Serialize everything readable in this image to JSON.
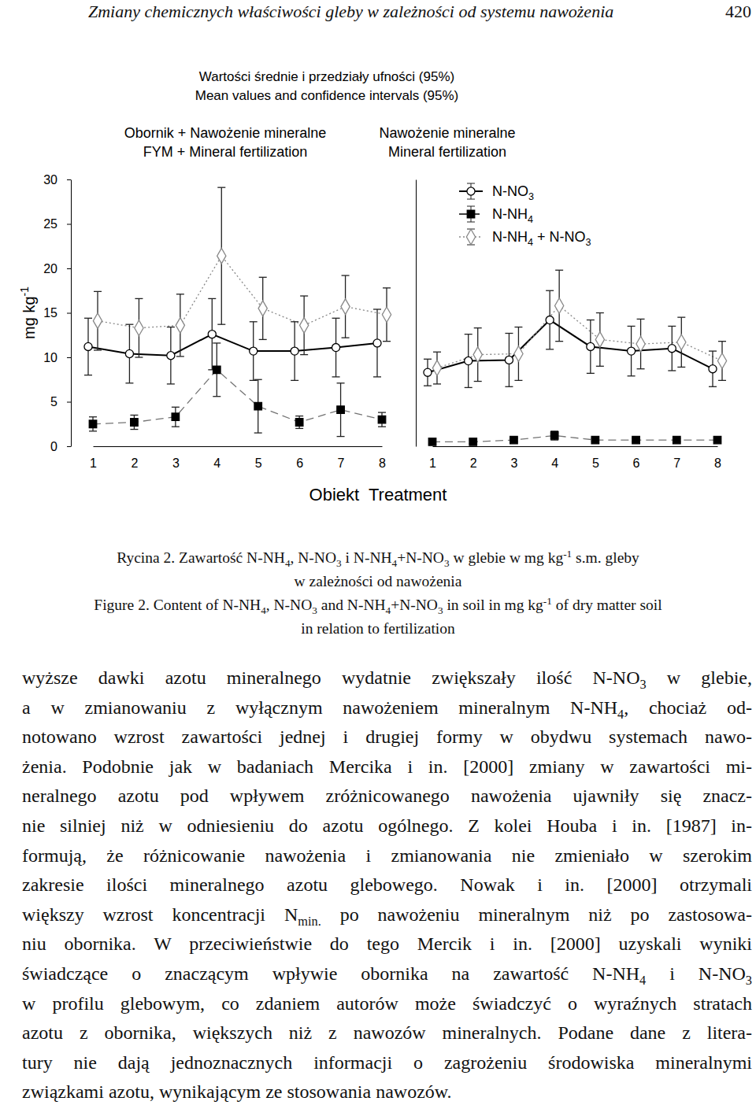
{
  "header": {
    "title": "Zmiany chemicznych właściwości gleby w zależności od systemu nawożenia",
    "page": 420
  },
  "figure": {
    "title": "Wartości średnie i przedziały ufności (95%)",
    "subtitle": "Mean values and confidence intervals (95%)",
    "x_label": "Obiekt  Treatment"
  },
  "chart_data": [
    {
      "type": "line",
      "title": "Obornik + Nawożenie mineralne",
      "subtitle": "FYM + Mineral fertilization",
      "y_label": "mg kg-1",
      "categories": [
        "1",
        "2",
        "3",
        "4",
        "5",
        "6",
        "7",
        "8"
      ],
      "ylim": [
        0,
        30
      ],
      "yticks": [
        0,
        5,
        10,
        15,
        20,
        25,
        30
      ],
      "series": [
        {
          "color": "#000000",
          "marker": "circle-open",
          "line_style": "solid",
          "values": [
            11.2,
            10.4,
            10.2,
            12.6,
            10.7,
            10.7,
            11.1,
            11.6
          ],
          "errors": [
            3.2,
            3.3,
            3.2,
            4.0,
            3.3,
            3.3,
            3.3,
            3.8
          ]
        },
        {
          "color": "#000000",
          "marker": "square",
          "line_style": "dashed",
          "values": [
            2.5,
            2.7,
            3.3,
            8.6,
            4.5,
            2.7,
            4.1,
            3.0
          ],
          "errors": [
            0.8,
            0.8,
            1.1,
            3.0,
            3.0,
            0.7,
            3.0,
            0.8
          ]
        },
        {
          "color": "#888888",
          "marker": "diamond-open",
          "line_style": "dotted",
          "values": [
            14.1,
            13.3,
            13.6,
            21.4,
            15.5,
            13.6,
            15.7,
            14.8
          ],
          "errors": [
            3.3,
            3.3,
            3.5,
            7.7,
            3.5,
            3.3,
            3.5,
            3.0
          ]
        }
      ]
    },
    {
      "type": "line",
      "title": "Nawożenie mineralne",
      "subtitle": "Mineral fertilization",
      "categories": [
        "1",
        "2",
        "3",
        "4",
        "5",
        "6",
        "7",
        "8"
      ],
      "ylim": [
        0,
        30
      ],
      "yticks": [
        0,
        5,
        10,
        15,
        20,
        25,
        30
      ],
      "tick_labels": "x",
      "legend": "top right",
      "series": [
        {
          "name": "N-NO3",
          "color": "#000000",
          "marker": "circle-open",
          "line_style": "solid",
          "values": [
            8.3,
            9.6,
            9.7,
            14.2,
            11.2,
            10.7,
            11.0,
            8.7
          ],
          "errors": [
            1.5,
            3.0,
            3.0,
            3.3,
            3.0,
            2.8,
            2.5,
            2.0
          ]
        },
        {
          "name": "N-NH4",
          "color": "#000000",
          "marker": "square",
          "line_style": "dashed",
          "values": [
            0.5,
            0.5,
            0.7,
            1.2,
            0.7,
            0.7,
            0.7,
            0.7
          ],
          "errors": [
            0.2,
            0.2,
            0.2,
            0.5,
            0.2,
            0.2,
            0.2,
            0.2
          ]
        },
        {
          "name": "N-NH4 + N-NO3",
          "color": "#888888",
          "marker": "diamond-open",
          "line_style": "dotted",
          "values": [
            8.8,
            10.3,
            10.4,
            15.8,
            12.0,
            11.5,
            11.7,
            9.6
          ],
          "errors": [
            1.8,
            3.0,
            3.0,
            4.0,
            3.0,
            2.8,
            2.8,
            2.2
          ]
        }
      ]
    }
  ],
  "caption": {
    "lines": [
      "Rycina 2. Zawartość N-NH4, N-NO3 i N-NH4+N-NO3 w glebie w mg kg-1 s.m. gleby",
      "w zależności od nawożenia",
      "Figure 2. Content of N-NH4, N-NO3 and N-NH4+N-NO3 in soil in mg kg-1 of dry matter soil",
      "in relation to fertilization"
    ]
  },
  "body": {
    "lines": [
      "wyższe dawki azotu mineralnego wydatnie zwiększały ilość N-NO3 w glebie,",
      "a w zmianowaniu z wyłącznym nawożeniem mineralnym N-NH4, chociaż od-",
      "notowano wzrost zawartości jednej i drugiej formy w obydwu systemach nawo-",
      "żenia. Podobnie jak w badaniach Mercika i in. [2000] zmiany w zawartości mi-",
      "neralnego azotu pod wpływem zróżnicowanego nawożenia ujawniły się znacz-",
      "nie silniej niż w odniesieniu do azotu ogólnego. Z kolei Houba i in. [1987] in-",
      "formują, że różnicowanie nawożenia i zmianowania nie zmieniało w szerokim",
      "zakresie ilości mineralnego azotu glebowego. Nowak i in. [2000] otrzymali",
      "większy wzrost koncentracji Nmin. po nawożeniu mineralnym niż po zastosowa-",
      "niu obornika. W przeciwieństwie do tego Mercik i in. [2000] uzyskali wyniki",
      "świadczące o znaczącym wpływie obornika na zawartość N-NH4 i N-NO3",
      "w profilu glebowym, co zdaniem autorów może świadczyć o wyraźnych stratach",
      "azotu z obornika, większych niż z nawozów mineralnych. Podane dane z litera-",
      "tury nie dają jednoznacznych informacji o zagrożeniu środowiska mineralnymi",
      "związkami azotu, wynikającym ze stosowania nawozów."
    ]
  }
}
